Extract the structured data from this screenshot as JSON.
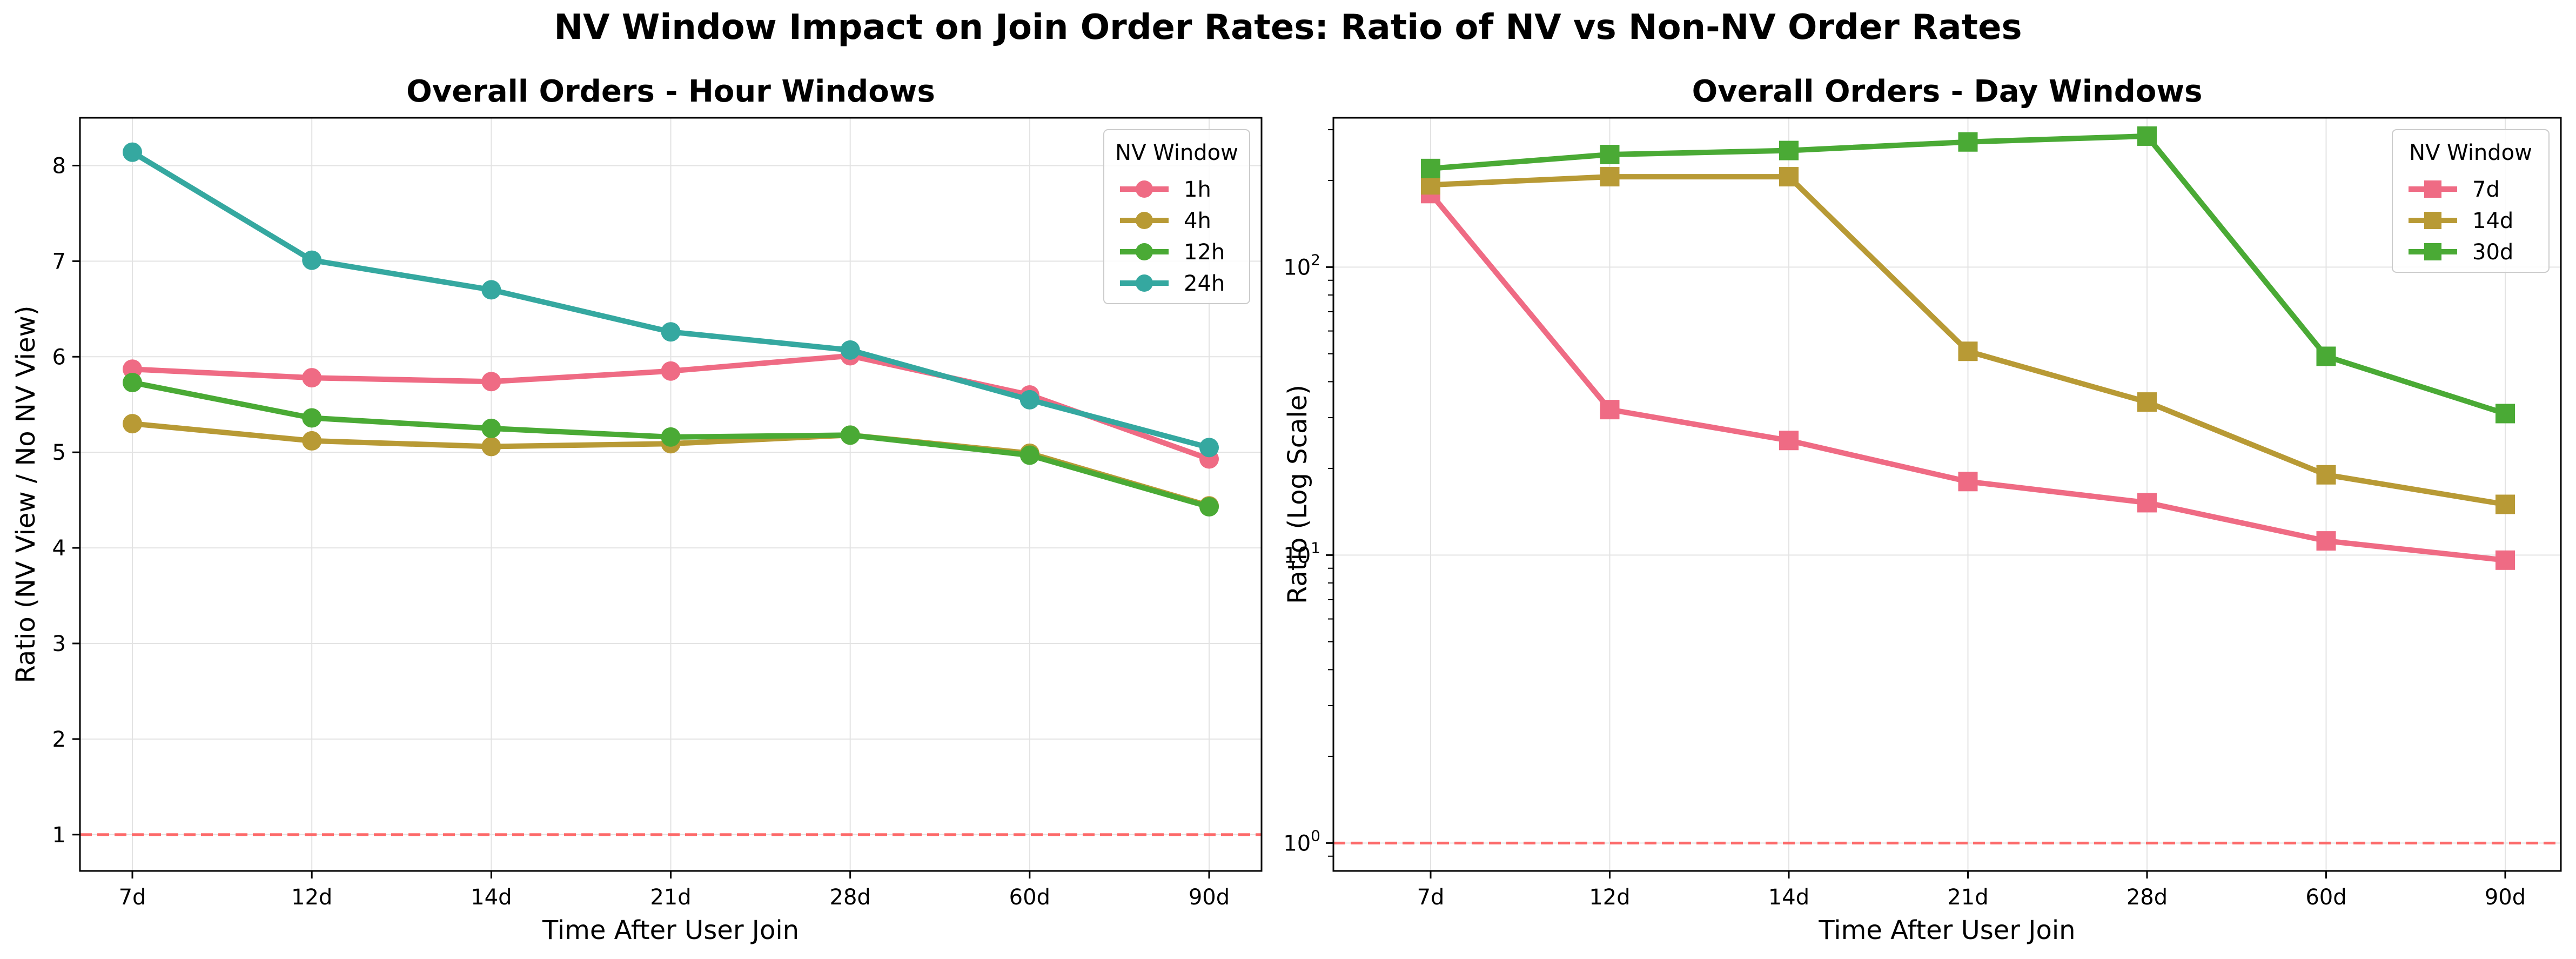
{
  "figure": {
    "title": "NV Window Impact on Join Order Rates: Ratio of NV vs Non-NV Order Rates"
  },
  "reference_line": {
    "value": 1,
    "color": "#ff5555"
  },
  "chart_data": [
    {
      "type": "line",
      "title": "Overall Orders - Hour Windows",
      "xlabel": "Time After User Join",
      "ylabel": "Ratio (NV View / No NV View)",
      "categories": [
        "7d",
        "12d",
        "14d",
        "21d",
        "28d",
        "60d",
        "90d"
      ],
      "scale": "linear",
      "ylim": [
        0.62,
        8.5
      ],
      "yticks": [
        1,
        2,
        3,
        4,
        5,
        6,
        7,
        8
      ],
      "ytick_labels": [
        "1",
        "2",
        "3",
        "4",
        "5",
        "6",
        "7",
        "8"
      ],
      "grid": true,
      "marker": "circle",
      "legend": {
        "title": "NV Window",
        "position": "top-right"
      },
      "series": [
        {
          "name": "1h",
          "color": "#ef6b84",
          "values": [
            5.87,
            5.78,
            5.74,
            5.85,
            6.01,
            5.6,
            4.93
          ]
        },
        {
          "name": "4h",
          "color": "#b89a35",
          "values": [
            5.3,
            5.12,
            5.06,
            5.09,
            5.18,
            4.99,
            4.44
          ]
        },
        {
          "name": "12h",
          "color": "#4aaa35",
          "values": [
            5.73,
            5.36,
            5.25,
            5.16,
            5.18,
            4.97,
            4.43
          ]
        },
        {
          "name": "24h",
          "color": "#35a8a0",
          "values": [
            8.14,
            7.01,
            6.7,
            6.26,
            6.07,
            5.55,
            5.05
          ]
        }
      ]
    },
    {
      "type": "line",
      "title": "Overall Orders - Day Windows",
      "xlabel": "Time After User Join",
      "ylabel": "Ratio (Log Scale)",
      "categories": [
        "7d",
        "12d",
        "14d",
        "21d",
        "28d",
        "60d",
        "90d"
      ],
      "scale": "log",
      "ylim": [
        0.8,
        330
      ],
      "yticks": [
        1,
        10,
        100
      ],
      "ytick_labels": [
        "10",
        "10",
        "10"
      ],
      "ytick_exponents": [
        "0",
        "1",
        "2"
      ],
      "grid": true,
      "marker": "square",
      "legend": {
        "title": "NV Window",
        "position": "top-right"
      },
      "series": [
        {
          "name": "7d",
          "color": "#ef6b84",
          "values": [
            180,
            32,
            25,
            18,
            15.2,
            11.2,
            9.6
          ]
        },
        {
          "name": "14d",
          "color": "#b89a35",
          "values": [
            193,
            206,
            206,
            51,
            34,
            19,
            15
          ]
        },
        {
          "name": "30d",
          "color": "#4aaa35",
          "values": [
            220,
            246,
            254,
            272,
            285,
            49,
            31
          ]
        }
      ]
    }
  ]
}
